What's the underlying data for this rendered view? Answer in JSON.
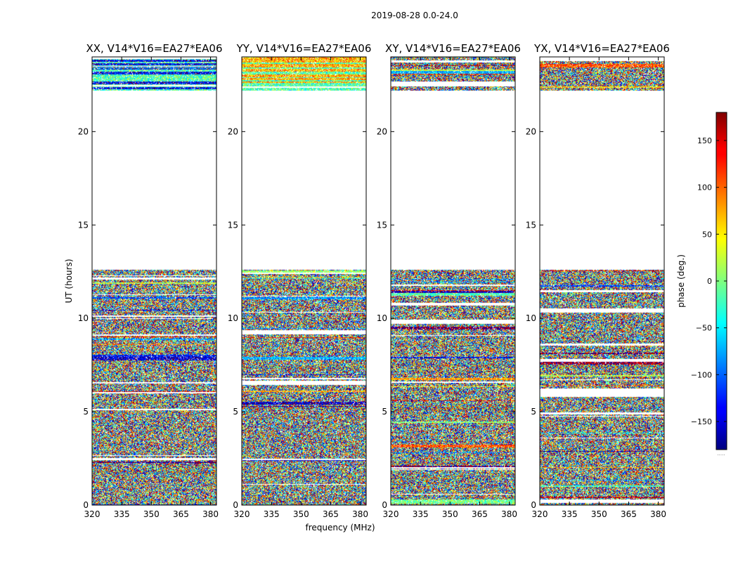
{
  "figure": {
    "suptitle": "2019-08-28 0.0-24.0",
    "xlabel": "frequency (MHz)",
    "ylabel": "UT (hours)",
    "colorbar_label": "phase (deg.)"
  },
  "chart_data": {
    "type": "heatmap",
    "colormap": "jet",
    "panels": [
      {
        "title": "XX, V14*V16=EA27*EA06"
      },
      {
        "title": "YY, V14*V16=EA27*EA06"
      },
      {
        "title": "XY, V14*V16=EA27*EA06"
      },
      {
        "title": "YX, V14*V16=EA27*EA06"
      }
    ],
    "x_ticks": [
      "320",
      "335",
      "350",
      "365",
      "380"
    ],
    "x_tick_values": [
      320,
      335,
      350,
      365,
      380
    ],
    "xlim": [
      320,
      383
    ],
    "y_ticks": [
      "0",
      "5",
      "10",
      "15",
      "20"
    ],
    "y_tick_values": [
      0,
      5,
      10,
      15,
      20
    ],
    "ylim": [
      0,
      24
    ],
    "data_intervals_ut": [
      [
        0.0,
        12.6
      ],
      [
        22.2,
        24.0
      ]
    ],
    "blank_interval_ut": [
      12.6,
      22.2
    ],
    "colorbar": {
      "ticks": [
        "150",
        "100",
        "50",
        "0",
        "−50",
        "−100",
        "−150"
      ],
      "tick_values": [
        150,
        100,
        50,
        0,
        -50,
        -100,
        -150
      ],
      "range": [
        -180,
        180
      ]
    }
  }
}
